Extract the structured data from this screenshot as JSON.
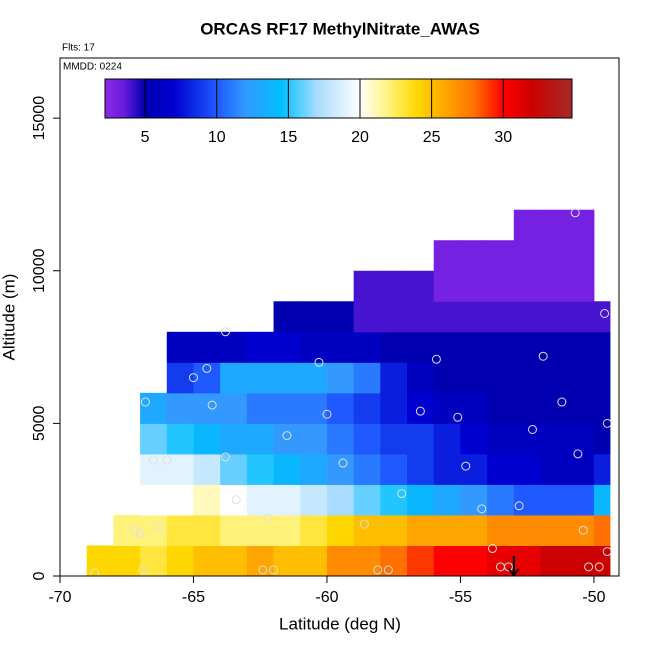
{
  "chart_data": {
    "type": "heatmap",
    "title": "ORCAS RF17 MethylNitrate_AWAS",
    "subtitle": "Flts: 17",
    "annotation": "MMDD: 0224",
    "x_label": "Latitude (deg N)",
    "y_label": "Altitude (m)",
    "xlim": [
      -70,
      -49.06
    ],
    "ylim": [
      0,
      16970
    ],
    "xticks": [
      -70,
      -65,
      -60,
      -55,
      -50
    ],
    "yticks": [
      0,
      5000,
      10000,
      15000
    ],
    "x_edges": [
      -69,
      -68,
      -67,
      -66,
      -65,
      -64,
      -63,
      -62,
      -61,
      -60,
      -59,
      -58,
      -57,
      -56,
      -55,
      -54,
      -53,
      -52,
      -51,
      -50,
      -49.4
    ],
    "y_edges": [
      0,
      1000,
      2000,
      3000,
      4000,
      5000,
      6000,
      7000,
      8000,
      9000,
      10000,
      11000,
      12000
    ],
    "z": [
      [
        24,
        24,
        23,
        24,
        25,
        25,
        26,
        25,
        25,
        27,
        27,
        28,
        29,
        30,
        30,
        31,
        31,
        32,
        32,
        32
      ],
      [
        null,
        22,
        22,
        23,
        23,
        22,
        22,
        22,
        23,
        24,
        25,
        25,
        26,
        26,
        26,
        27,
        27,
        27,
        27,
        28
      ],
      [
        null,
        null,
        20,
        20,
        21,
        20,
        19,
        19,
        18,
        17,
        16,
        15,
        14,
        13,
        12,
        11,
        10,
        10,
        10,
        14
      ],
      [
        null,
        null,
        19,
        19,
        18,
        16,
        15,
        14,
        13,
        12,
        11,
        10,
        9,
        8,
        8,
        7,
        7,
        6,
        6,
        8
      ],
      [
        null,
        null,
        16,
        15,
        14,
        13,
        13,
        12,
        12,
        11,
        10,
        9,
        9,
        8,
        7,
        6,
        6,
        6,
        6,
        5
      ],
      [
        null,
        null,
        13,
        12,
        12,
        12,
        11,
        11,
        11,
        10,
        9,
        8,
        7,
        6,
        6,
        5,
        5,
        5,
        5,
        5
      ],
      [
        null,
        null,
        null,
        9,
        10,
        13,
        13,
        13,
        13,
        12,
        11,
        8,
        6,
        5,
        5,
        5,
        5,
        5,
        5,
        5
      ],
      [
        null,
        null,
        null,
        6,
        6,
        6,
        7,
        7,
        6,
        6,
        6,
        5,
        5,
        5,
        5,
        5,
        5,
        5,
        5,
        5
      ],
      [
        null,
        null,
        null,
        null,
        null,
        null,
        null,
        5,
        5,
        5,
        4,
        4,
        4,
        4,
        4,
        4,
        4,
        4,
        4,
        4
      ],
      [
        null,
        null,
        null,
        null,
        null,
        null,
        null,
        null,
        null,
        null,
        4,
        4,
        4,
        3,
        3,
        3,
        3,
        3,
        3,
        null
      ],
      [
        null,
        null,
        null,
        null,
        null,
        null,
        null,
        null,
        null,
        null,
        null,
        null,
        null,
        3,
        3,
        3,
        3,
        3,
        3,
        null
      ],
      [
        null,
        null,
        null,
        null,
        null,
        null,
        null,
        null,
        null,
        null,
        null,
        null,
        null,
        null,
        null,
        null,
        3,
        3,
        3,
        null
      ]
    ],
    "clim": [
      2.2,
      34.8
    ],
    "cticks": [
      5,
      10,
      15,
      20,
      25,
      30
    ],
    "colorscale": [
      [
        2.2,
        "#8a2be2"
      ],
      [
        3.5,
        "#6a1be0"
      ],
      [
        5,
        "#0000b0"
      ],
      [
        7,
        "#0000d0"
      ],
      [
        10,
        "#1e5aff"
      ],
      [
        12,
        "#3399ff"
      ],
      [
        14.5,
        "#00bfff"
      ],
      [
        17,
        "#a8dcff"
      ],
      [
        20,
        "#ffffff"
      ],
      [
        22,
        "#fff27a"
      ],
      [
        24,
        "#ffd700"
      ],
      [
        26,
        "#ffa500"
      ],
      [
        28,
        "#ff7000"
      ],
      [
        30,
        "#ff0000"
      ],
      [
        32,
        "#cc0000"
      ],
      [
        34.8,
        "#a52a2a"
      ]
    ],
    "points": {
      "color": "#e0e0e0",
      "x": [
        -68.7,
        -67.2,
        -67.0,
        -66.5,
        -66.0,
        -66.8,
        -66.3,
        -66.9,
        -65.0,
        -64.5,
        -64.3,
        -63.8,
        -63.4,
        -63.8,
        -62.2,
        -62.4,
        -62.0,
        -61.5,
        -60.3,
        -60.0,
        -59.4,
        -58.6,
        -58.1,
        -57.7,
        -57.2,
        -56.5,
        -55.9,
        -55.1,
        -54.8,
        -54.2,
        -53.8,
        -53.5,
        -53.2,
        -52.8,
        -52.3,
        -51.9,
        -51.2,
        -50.7,
        -50.6,
        -50.4,
        -50.2,
        -49.8,
        -49.6,
        -49.5,
        -49.5
      ],
      "y": [
        100,
        1500,
        1400,
        3800,
        3800,
        5700,
        1600,
        200,
        6500,
        6800,
        5600,
        3900,
        2500,
        8000,
        1900,
        200,
        200,
        4600,
        7000,
        5300,
        3700,
        1700,
        200,
        200,
        2700,
        5400,
        7100,
        5200,
        3600,
        2200,
        900,
        300,
        300,
        2300,
        4800,
        7200,
        5700,
        11900,
        4000,
        1500,
        300,
        300,
        8600,
        5000,
        800
      ]
    },
    "arrow_x": -53
  }
}
